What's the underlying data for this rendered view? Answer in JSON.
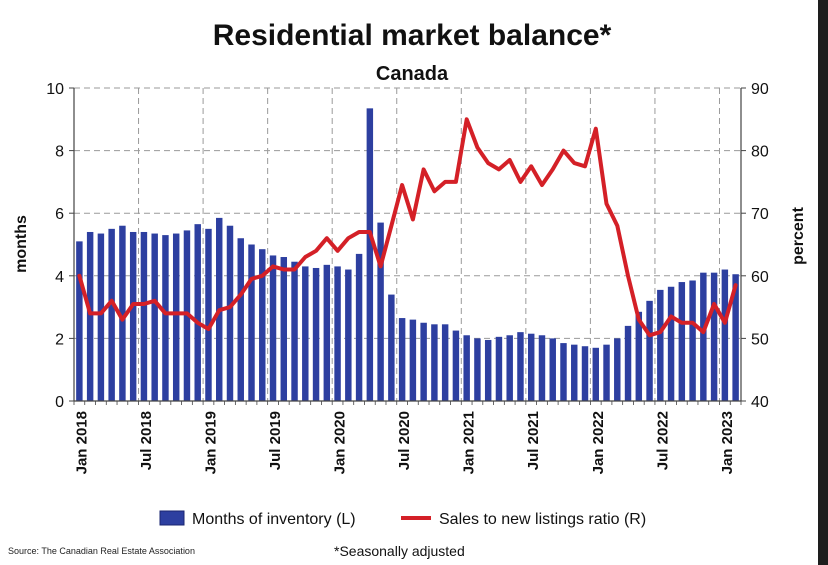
{
  "colors": {
    "bar": "#2d3fa0",
    "line": "#d42027",
    "grid": "#9a9a9a",
    "axis": "#444444",
    "text": "#111111"
  },
  "footer": {
    "source": "Source: The Canadian Real Estate Association",
    "note": "*Seasonally adjusted"
  },
  "chart_data": {
    "type": "bar+line",
    "title": "Residential market balance*",
    "subtitle": "Canada",
    "ylabel_left": "months",
    "ylabel_right": "percent",
    "ylim_left": [
      0,
      10
    ],
    "ylim_right": [
      40,
      90
    ],
    "yticks_left": [
      "0",
      "2",
      "4",
      "6",
      "8",
      "10"
    ],
    "yticks_right": [
      "40",
      "50",
      "60",
      "70",
      "80",
      "90"
    ],
    "xtick_labels": [
      {
        "index": 0,
        "label": "Jan 2018"
      },
      {
        "index": 6,
        "label": "Jul 2018"
      },
      {
        "index": 12,
        "label": "Jan 2019"
      },
      {
        "index": 18,
        "label": "Jul 2019"
      },
      {
        "index": 24,
        "label": "Jan 2020"
      },
      {
        "index": 30,
        "label": "Jul 2020"
      },
      {
        "index": 36,
        "label": "Jan 2021"
      },
      {
        "index": 42,
        "label": "Jul 2021"
      },
      {
        "index": 48,
        "label": "Jan 2022"
      },
      {
        "index": 54,
        "label": "Jul 2022"
      },
      {
        "index": 60,
        "label": "Jan 2023"
      }
    ],
    "grid": true,
    "legend_position": "bottom",
    "series": [
      {
        "name": "Months of inventory (L)",
        "type": "bar",
        "axis": "left",
        "values": [
          5.1,
          5.4,
          5.35,
          5.5,
          5.6,
          5.4,
          5.4,
          5.35,
          5.3,
          5.35,
          5.45,
          5.65,
          5.5,
          5.85,
          5.6,
          5.2,
          5.0,
          4.85,
          4.65,
          4.6,
          4.45,
          4.3,
          4.25,
          4.35,
          4.3,
          4.2,
          4.7,
          9.35,
          5.7,
          3.4,
          2.65,
          2.6,
          2.5,
          2.45,
          2.45,
          2.25,
          2.1,
          2.0,
          1.95,
          2.05,
          2.1,
          2.2,
          2.15,
          2.1,
          2.0,
          1.85,
          1.8,
          1.75,
          1.7,
          1.8,
          2.0,
          2.4,
          2.85,
          3.2,
          3.55,
          3.65,
          3.8,
          3.85,
          4.1,
          4.1,
          4.2,
          4.05
        ]
      },
      {
        "name": "Sales to new listings ratio (R)",
        "type": "line",
        "axis": "right",
        "values": [
          60.0,
          54.0,
          54.0,
          56.0,
          53.0,
          55.5,
          55.5,
          56.0,
          54.0,
          54.0,
          54.0,
          52.5,
          51.5,
          54.5,
          55.0,
          57.0,
          59.5,
          60.0,
          61.5,
          61.0,
          61.0,
          63.0,
          64.0,
          66.0,
          64.0,
          66.0,
          67.0,
          67.0,
          61.5,
          68.0,
          74.5,
          69.0,
          77.0,
          73.5,
          75.0,
          75.0,
          85.0,
          80.5,
          78.0,
          77.0,
          78.5,
          75.0,
          77.5,
          74.5,
          77.0,
          80.0,
          78.0,
          77.5,
          83.5,
          71.5,
          68.0,
          60.0,
          53.0,
          50.5,
          51.0,
          53.5,
          52.5,
          52.5,
          51.0,
          55.5,
          52.5,
          58.5
        ]
      }
    ]
  }
}
